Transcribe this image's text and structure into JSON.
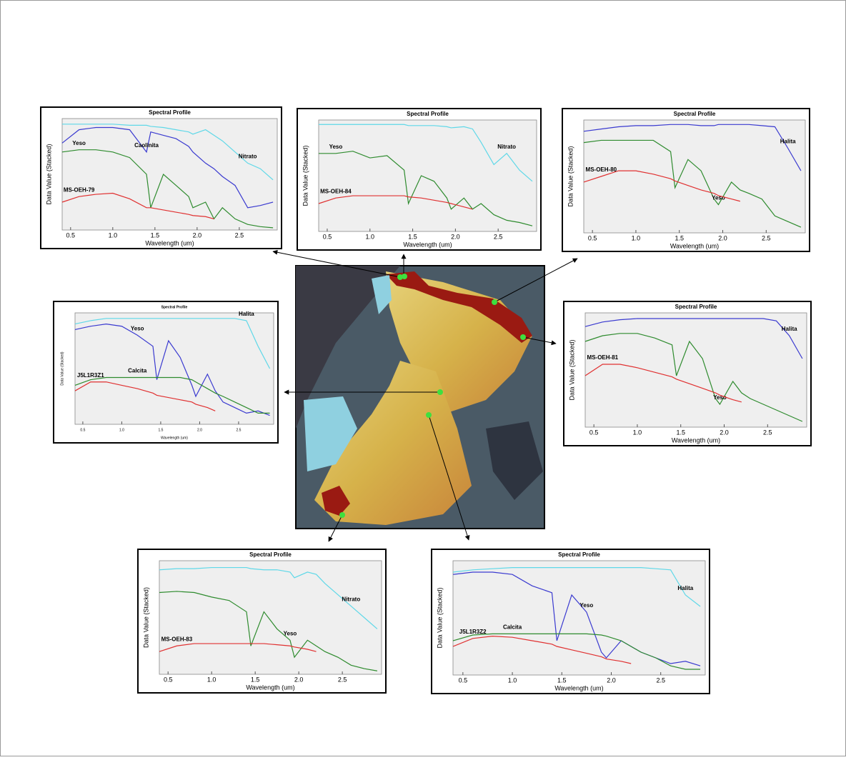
{
  "chart_data": [
    {
      "type": "line",
      "title": "Spectral Profile",
      "y_label": "Data Value (Stacked)",
      "x_label": "Wavelength (um)",
      "x": [
        0.4,
        0.6,
        0.8,
        1.0,
        1.2,
        1.4,
        1.45,
        1.6,
        1.75,
        1.9,
        1.95,
        2.1,
        2.2,
        2.3,
        2.45,
        2.6,
        2.75,
        2.9
      ],
      "xlim": [
        0.4,
        2.95
      ],
      "xticks": [
        0.5,
        {
          "value": 1,
          "label": "1.0"
        },
        1.5,
        {
          "value": 2,
          "label": "2.0"
        },
        2.5
      ],
      "ylim": [
        0,
        100
      ],
      "series": [
        {
          "name": "Nitrato",
          "color": "#5fd8e8",
          "values": [
            95,
            95,
            95,
            95,
            94,
            94,
            93,
            92,
            90,
            88,
            86,
            90,
            85,
            80,
            70,
            60,
            55,
            45
          ]
        },
        {
          "name": "Caolinita",
          "color": "#3a3ad0",
          "values": [
            78,
            90,
            92,
            92,
            90,
            70,
            88,
            85,
            82,
            75,
            70,
            60,
            55,
            48,
            40,
            20,
            22,
            25
          ]
        },
        {
          "name": "Yeso",
          "color": "#2e8b2e",
          "values": [
            70,
            72,
            72,
            70,
            65,
            50,
            20,
            50,
            40,
            30,
            20,
            25,
            10,
            20,
            10,
            5,
            3,
            2
          ]
        },
        {
          "name": "MS-OEH-79",
          "color": "#e03030",
          "values": [
            25,
            30,
            32,
            33,
            28,
            20,
            20,
            18,
            16,
            14,
            13,
            12,
            10,
            null,
            null,
            null,
            null,
            null
          ]
        }
      ]
    },
    {
      "type": "line",
      "title": "Spectral Profile",
      "y_label": "Data Value (Stacked)",
      "x_label": "Wavelength (um)",
      "x": [
        0.4,
        0.6,
        0.8,
        1.0,
        1.2,
        1.4,
        1.45,
        1.6,
        1.75,
        1.9,
        1.95,
        2.1,
        2.2,
        2.3,
        2.45,
        2.6,
        2.75,
        2.9
      ],
      "xlim": [
        0.4,
        2.95
      ],
      "xticks": [
        0.5,
        {
          "value": 1,
          "label": "1.0"
        },
        1.5,
        {
          "value": 2,
          "label": "2.0"
        },
        2.5
      ],
      "ylim": [
        0,
        100
      ],
      "series": [
        {
          "name": "Nitrato",
          "color": "#5fd8e8",
          "values": [
            96,
            96,
            96,
            96,
            96,
            96,
            95,
            95,
            95,
            94,
            93,
            94,
            92,
            80,
            60,
            70,
            55,
            45
          ]
        },
        {
          "name": "Yeso",
          "color": "#2e8b2e",
          "values": [
            70,
            70,
            72,
            66,
            68,
            55,
            25,
            50,
            45,
            30,
            20,
            30,
            20,
            25,
            15,
            10,
            8,
            5
          ]
        },
        {
          "name": "MS-OEH-84",
          "color": "#e03030",
          "values": [
            25,
            30,
            32,
            32,
            32,
            32,
            31,
            30,
            28,
            26,
            25,
            22,
            20,
            null,
            null,
            null,
            null,
            null
          ]
        }
      ]
    },
    {
      "type": "line",
      "title": "Spectral Profile",
      "y_label": "Data Value (Stacked)",
      "x_label": "Wavelength (um)",
      "x": [
        0.4,
        0.6,
        0.8,
        1.0,
        1.2,
        1.4,
        1.45,
        1.6,
        1.75,
        1.9,
        1.95,
        2.1,
        2.2,
        2.3,
        2.45,
        2.6,
        2.75,
        2.9
      ],
      "xlim": [
        0.4,
        2.95
      ],
      "xticks": [
        0.5,
        {
          "value": 1,
          "label": "1.0"
        },
        1.5,
        {
          "value": 2,
          "label": "2.0"
        },
        2.5
      ],
      "ylim": [
        0,
        100
      ],
      "series": [
        {
          "name": "Halita",
          "color": "#3a3ad0",
          "values": [
            90,
            92,
            94,
            95,
            95,
            96,
            96,
            96,
            95,
            95,
            96,
            96,
            96,
            96,
            95,
            94,
            75,
            55
          ]
        },
        {
          "name": "Yeso",
          "color": "#2e8b2e",
          "values": [
            80,
            82,
            82,
            82,
            82,
            72,
            40,
            65,
            55,
            30,
            25,
            45,
            38,
            35,
            30,
            15,
            10,
            5
          ]
        },
        {
          "name": "MS-OEH-80",
          "color": "#e03030",
          "values": [
            45,
            50,
            55,
            55,
            52,
            48,
            46,
            42,
            38,
            35,
            33,
            30,
            28,
            null,
            null,
            null,
            null,
            null
          ]
        }
      ]
    },
    {
      "type": "line",
      "title": "Spectral Profile",
      "y_label": "Data Value (Stacked)",
      "x_label": "Wavelength (um)",
      "x": [
        0.4,
        0.6,
        0.8,
        1.0,
        1.2,
        1.4,
        1.45,
        1.6,
        1.75,
        1.9,
        1.95,
        2.1,
        2.2,
        2.3,
        2.45,
        2.6,
        2.75,
        2.9
      ],
      "xlim": [
        0.4,
        2.95
      ],
      "xticks": [
        0.5,
        {
          "value": 1,
          "label": "1.0"
        },
        1.5,
        {
          "value": 2,
          "label": "2.0"
        },
        2.5
      ],
      "ylim": [
        0,
        100
      ],
      "series": [
        {
          "name": "Halita",
          "color": "#5fd8e8",
          "values": [
            90,
            93,
            95,
            95,
            95,
            95,
            95,
            95,
            95,
            95,
            95,
            95,
            95,
            95,
            95,
            93,
            70,
            50
          ]
        },
        {
          "name": "Yeso",
          "color": "#3a3ad0",
          "values": [
            85,
            88,
            90,
            88,
            80,
            70,
            40,
            75,
            60,
            35,
            25,
            45,
            30,
            20,
            15,
            10,
            12,
            8
          ]
        },
        {
          "name": "Calcita",
          "color": "#2e8b2e",
          "values": [
            35,
            40,
            42,
            42,
            42,
            42,
            42,
            42,
            42,
            40,
            38,
            32,
            28,
            25,
            20,
            15,
            10,
            10
          ]
        },
        {
          "name": "J5L1R3Z1",
          "color": "#e03030",
          "values": [
            30,
            38,
            38,
            35,
            32,
            28,
            26,
            24,
            22,
            20,
            18,
            15,
            12,
            null,
            null,
            null,
            null,
            null
          ]
        }
      ]
    },
    {
      "type": "line",
      "title": "Spectral Profile",
      "y_label": "Data Value (Stacked)",
      "x_label": "Wavelength (um)",
      "x": [
        0.4,
        0.6,
        0.8,
        1.0,
        1.2,
        1.4,
        1.45,
        1.6,
        1.75,
        1.9,
        1.95,
        2.1,
        2.2,
        2.3,
        2.45,
        2.6,
        2.75,
        2.9
      ],
      "xlim": [
        0.4,
        2.95
      ],
      "xticks": [
        0.5,
        {
          "value": 1,
          "label": "1.0"
        },
        1.5,
        {
          "value": 2,
          "label": "2.0"
        },
        2.5
      ],
      "ylim": [
        0,
        100
      ],
      "series": [
        {
          "name": "Halita",
          "color": "#3a3ad0",
          "values": [
            88,
            92,
            94,
            95,
            95,
            95,
            95,
            95,
            95,
            95,
            95,
            95,
            95,
            95,
            95,
            93,
            80,
            60
          ]
        },
        {
          "name": "Yeso",
          "color": "#2e8b2e",
          "values": [
            75,
            80,
            82,
            82,
            78,
            72,
            45,
            75,
            60,
            25,
            20,
            40,
            30,
            25,
            20,
            15,
            10,
            5
          ]
        },
        {
          "name": "MS-OEH-81",
          "color": "#e03030",
          "values": [
            45,
            55,
            55,
            52,
            48,
            44,
            42,
            38,
            34,
            30,
            28,
            24,
            22,
            null,
            null,
            null,
            null,
            null
          ]
        }
      ]
    },
    {
      "type": "line",
      "title": "Spectral Profile",
      "y_label": "Data Value (Stacked)",
      "x_label": "Wavelength (um)",
      "x": [
        0.4,
        0.6,
        0.8,
        1.0,
        1.2,
        1.4,
        1.45,
        1.6,
        1.75,
        1.9,
        1.95,
        2.1,
        2.2,
        2.3,
        2.45,
        2.6,
        2.75,
        2.9
      ],
      "xlim": [
        0.4,
        2.95
      ],
      "xticks": [
        0.5,
        {
          "value": 1,
          "label": "1.0"
        },
        1.5,
        {
          "value": 2,
          "label": "2.0"
        },
        2.5
      ],
      "ylim": [
        0,
        100
      ],
      "series": [
        {
          "name": "Nitrato",
          "color": "#5fd8e8",
          "values": [
            92,
            93,
            93,
            94,
            94,
            94,
            93,
            92,
            92,
            90,
            85,
            90,
            88,
            80,
            70,
            60,
            50,
            40
          ]
        },
        {
          "name": "Yeso",
          "color": "#2e8b2e",
          "values": [
            72,
            73,
            72,
            68,
            65,
            55,
            25,
            55,
            40,
            30,
            15,
            30,
            25,
            20,
            15,
            8,
            5,
            3
          ]
        },
        {
          "name": "MS-OEH-83",
          "color": "#e03030",
          "values": [
            20,
            25,
            27,
            27,
            27,
            27,
            27,
            27,
            26,
            25,
            24,
            22,
            20,
            null,
            null,
            null,
            null,
            null
          ]
        }
      ]
    },
    {
      "type": "line",
      "title": "Spectral Profile",
      "y_label": "Data Value (Stacked)",
      "x_label": "Wavelength (um)",
      "x": [
        0.4,
        0.6,
        0.8,
        1.0,
        1.2,
        1.4,
        1.45,
        1.6,
        1.75,
        1.9,
        1.95,
        2.1,
        2.2,
        2.3,
        2.45,
        2.6,
        2.75,
        2.9
      ],
      "xlim": [
        0.4,
        2.95
      ],
      "xticks": [
        0.5,
        {
          "value": 1,
          "label": "1.0"
        },
        1.5,
        {
          "value": 2,
          "label": "2.0"
        },
        2.5
      ],
      "ylim": [
        0,
        100
      ],
      "series": [
        {
          "name": "Halita",
          "color": "#5fd8e8",
          "values": [
            90,
            92,
            93,
            94,
            94,
            94,
            94,
            94,
            94,
            94,
            94,
            94,
            94,
            94,
            93,
            92,
            70,
            60
          ]
        },
        {
          "name": "Yeso",
          "color": "#3a3ad0",
          "values": [
            88,
            90,
            90,
            88,
            78,
            72,
            30,
            70,
            55,
            20,
            15,
            30,
            25,
            20,
            15,
            10,
            12,
            8
          ]
        },
        {
          "name": "Calcita",
          "color": "#2e8b2e",
          "values": [
            30,
            35,
            36,
            36,
            36,
            36,
            36,
            36,
            36,
            35,
            34,
            30,
            25,
            20,
            15,
            8,
            5,
            5
          ]
        },
        {
          "name": "J5L1R3Z2",
          "color": "#e03030",
          "values": [
            25,
            32,
            34,
            33,
            30,
            27,
            25,
            22,
            19,
            16,
            14,
            12,
            10,
            null,
            null,
            null,
            null,
            null
          ]
        }
      ]
    }
  ]
}
